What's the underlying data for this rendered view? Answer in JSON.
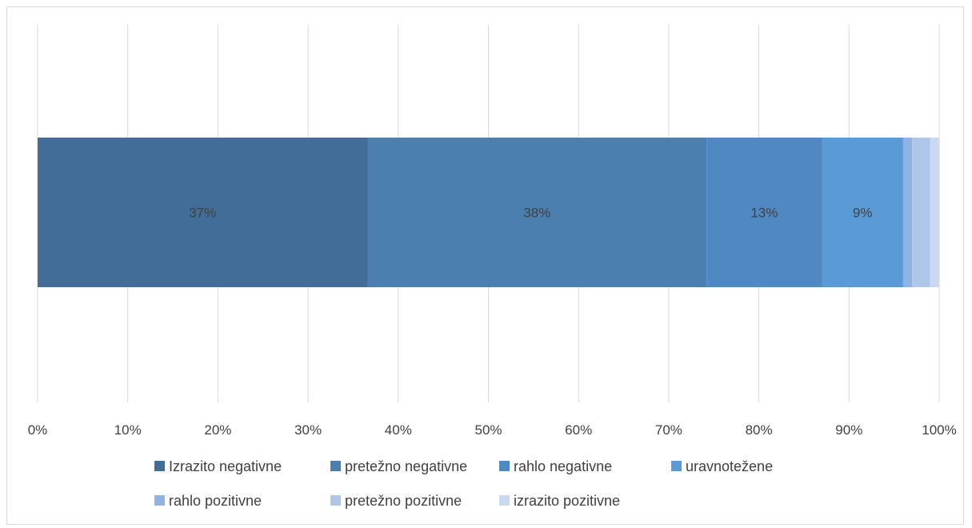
{
  "chart_data": {
    "type": "bar",
    "orientation": "horizontal",
    "stacked": "percent",
    "title": "",
    "xlabel": "",
    "ylabel": "",
    "xlim": [
      0,
      100
    ],
    "x_ticks": [
      "0%",
      "10%",
      "20%",
      "30%",
      "40%",
      "50%",
      "60%",
      "70%",
      "80%",
      "90%",
      "100%"
    ],
    "grid": "vertical",
    "legend_position": "bottom",
    "categories": [
      ""
    ],
    "series": [
      {
        "name": "Izrazito negativne",
        "values": [
          36.6
        ],
        "label": "37%",
        "color": "#416d98"
      },
      {
        "name": "pretežno negativne",
        "values": [
          37.6
        ],
        "label": "38%",
        "color": "#4a7faf"
      },
      {
        "name": "rahlo negativne",
        "values": [
          12.8
        ],
        "label": "13%",
        "color": "#5089c2"
      },
      {
        "name": "uravnotežene",
        "values": [
          9.0
        ],
        "label": "9%",
        "color": "#5b9bd5"
      },
      {
        "name": "rahlo pozitivne",
        "values": [
          1.0
        ],
        "label": "",
        "color": "#8fb4e3"
      },
      {
        "name": "pretežno pozitivne",
        "values": [
          2.0
        ],
        "label": "",
        "color": "#aec7e8"
      },
      {
        "name": "izrazito pozitivne",
        "values": [
          1.0
        ],
        "label": "",
        "color": "#c9daf0"
      }
    ]
  }
}
